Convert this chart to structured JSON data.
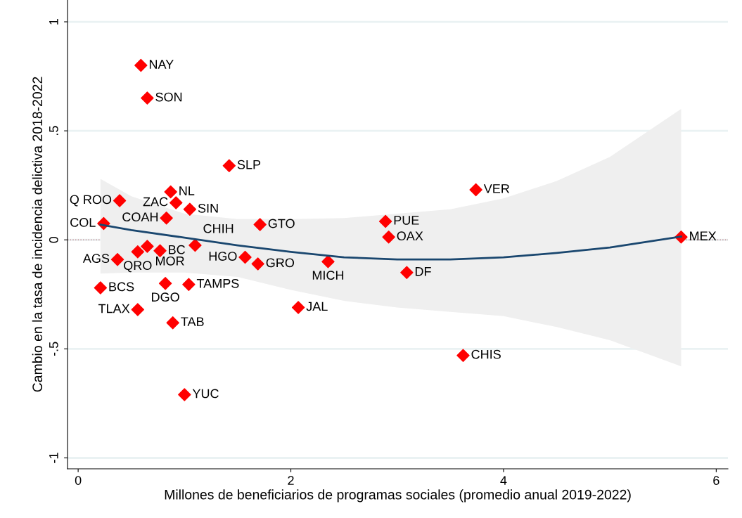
{
  "chart_data": {
    "type": "scatter",
    "xlabel": "Millones de beneficiarios de programas sociales (promedio anual 2019-2022)",
    "ylabel": "Cambio en la tasa de incidencia delictiva 2018-2022",
    "xlim": [
      -0.1,
      6.11
    ],
    "ylim": [
      -1.05,
      1.1
    ],
    "xticks": [
      0,
      2,
      4,
      6
    ],
    "yticks": [
      {
        "value": -1,
        "label": "-1"
      },
      {
        "value": -0.5,
        "label": "-.5"
      },
      0,
      {
        "value": 0.5,
        "label": ".5"
      },
      1
    ],
    "grid": "y",
    "marker": "diamond",
    "ref_lines": [
      {
        "axis": "y",
        "value": 0,
        "color": "#c98a90",
        "line_style": "dotted"
      }
    ],
    "series": [
      {
        "color": "#ff0000",
        "x": [
          0.59,
          0.65,
          1.42,
          0.87,
          0.39,
          0.92,
          1.05,
          0.83,
          0.24,
          0.65,
          0.56,
          0.77,
          1.1,
          0.37,
          0.21,
          0.82,
          1.04,
          0.56,
          0.89,
          1.0,
          1.71,
          1.57,
          1.69,
          2.35,
          2.07,
          2.89,
          2.92,
          3.09,
          3.74,
          3.62,
          5.67
        ],
        "values": [
          0.8,
          0.65,
          0.34,
          0.22,
          0.18,
          0.17,
          0.14,
          0.1,
          0.075,
          -0.03,
          -0.055,
          -0.05,
          -0.025,
          -0.09,
          -0.22,
          -0.2,
          -0.205,
          -0.32,
          -0.38,
          -0.71,
          0.07,
          -0.08,
          -0.11,
          -0.1,
          -0.31,
          0.085,
          0.013,
          -0.15,
          0.23,
          -0.53,
          0.013
        ]
      },
      {
        "type": "line",
        "color": "#1a476f",
        "marker": "none",
        "line_style": "solid",
        "x": [
          0.21,
          0.5,
          1,
          1.5,
          2,
          2.5,
          3,
          3.5,
          4,
          4.5,
          5,
          5.67
        ],
        "values": [
          0.07,
          0.045,
          0.01,
          -0.025,
          -0.055,
          -0.08,
          -0.09,
          -0.09,
          -0.08,
          -0.06,
          -0.035,
          0.015
        ],
        "lower": [
          -0.155,
          -0.15,
          -0.15,
          -0.17,
          -0.23,
          -0.28,
          -0.31,
          -0.33,
          -0.35,
          -0.4,
          -0.46,
          -0.58
        ],
        "upper": [
          0.28,
          0.2,
          0.12,
          0.095,
          0.095,
          0.1,
          0.12,
          0.14,
          0.19,
          0.27,
          0.38,
          0.6
        ]
      }
    ],
    "annotations": [
      {
        "text": "NAY",
        "x": 0.59,
        "y": 0.8
      },
      {
        "text": "SON",
        "x": 0.65,
        "y": 0.65
      },
      {
        "text": "SLP",
        "x": 1.42,
        "y": 0.34
      },
      {
        "text": "NL",
        "x": 0.87,
        "y": 0.22
      },
      {
        "text": "Q ROO",
        "x": 0.39,
        "y": 0.18
      },
      {
        "text": "ZAC",
        "x": 0.92,
        "y": 0.17
      },
      {
        "text": "SIN",
        "x": 1.05,
        "y": 0.14
      },
      {
        "text": "COAH",
        "x": 0.83,
        "y": 0.1
      },
      {
        "text": "COL",
        "x": 0.24,
        "y": 0.075
      },
      {
        "text": "MOR",
        "x": 0.65,
        "y": -0.03
      },
      {
        "text": "QRO",
        "x": 0.56,
        "y": -0.055
      },
      {
        "text": "BC",
        "x": 0.77,
        "y": -0.05
      },
      {
        "text": "CHIH",
        "x": 1.1,
        "y": -0.025
      },
      {
        "text": "AGS",
        "x": 0.37,
        "y": -0.09
      },
      {
        "text": "BCS",
        "x": 0.21,
        "y": -0.22
      },
      {
        "text": "DGO",
        "x": 0.82,
        "y": -0.2
      },
      {
        "text": "TAMPS",
        "x": 1.04,
        "y": -0.205
      },
      {
        "text": "TLAX",
        "x": 0.56,
        "y": -0.32
      },
      {
        "text": "TAB",
        "x": 0.89,
        "y": -0.38
      },
      {
        "text": "YUC",
        "x": 1.0,
        "y": -0.71
      },
      {
        "text": "GTO",
        "x": 1.71,
        "y": 0.07
      },
      {
        "text": "HGO",
        "x": 1.57,
        "y": -0.08
      },
      {
        "text": "GRO",
        "x": 1.69,
        "y": -0.11
      },
      {
        "text": "MICH",
        "x": 2.35,
        "y": -0.1
      },
      {
        "text": "JAL",
        "x": 2.07,
        "y": -0.31
      },
      {
        "text": "PUE",
        "x": 2.89,
        "y": 0.085
      },
      {
        "text": "OAX",
        "x": 2.92,
        "y": 0.013
      },
      {
        "text": "DF",
        "x": 3.09,
        "y": -0.15
      },
      {
        "text": "VER",
        "x": 3.74,
        "y": 0.23
      },
      {
        "text": "CHIS",
        "x": 3.62,
        "y": -0.53
      },
      {
        "text": "MEX",
        "x": 5.67,
        "y": 0.013
      }
    ]
  }
}
